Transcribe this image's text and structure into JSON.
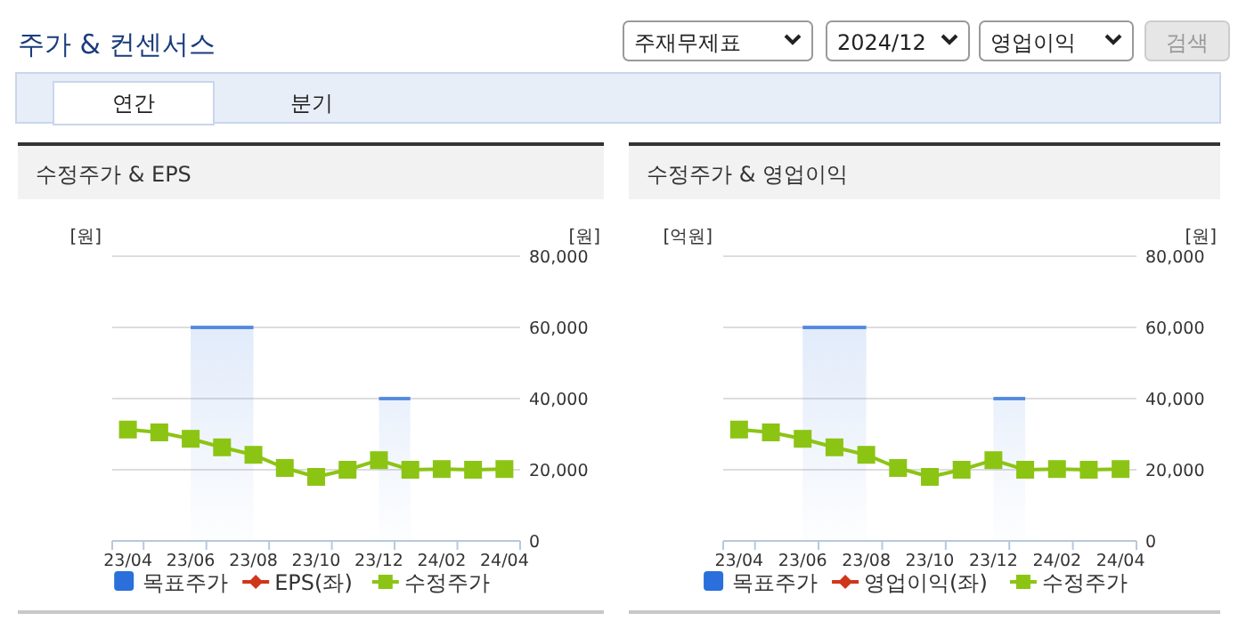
{
  "chart_data": [
    {
      "type": "other",
      "title": "주가 & 컨센서스",
      "annotations": [
        "주재무제표",
        "2024/12",
        "영업이익",
        "검색",
        "연간",
        "분기"
      ]
    },
    {
      "type": "line",
      "title": "수정주가 & EPS",
      "ylabel": "[원]",
      "y2label": "[원]",
      "categories": [
        "23/04",
        null,
        "23/06",
        null,
        "23/08",
        null,
        "23/10",
        null,
        "23/12",
        null,
        "24/02",
        null,
        "24/04"
      ],
      "y2lim": [
        0,
        80000
      ],
      "y2ticks": [
        {
          "value": 0,
          "label": "0"
        },
        {
          "value": 20000,
          "label": "20,000"
        },
        {
          "value": 40000,
          "label": "40,000"
        },
        {
          "value": 60000,
          "label": "60,000"
        },
        {
          "value": 80000,
          "label": "80,000"
        }
      ],
      "grid": true,
      "legend": "bottom",
      "series": [
        {
          "name": "목표주가",
          "type": "area",
          "axis": "y2",
          "color": "#2a6fdb",
          "values": [
            null,
            null,
            60000,
            60000,
            60000,
            null,
            null,
            null,
            40000,
            40000,
            null,
            null,
            null
          ]
        },
        {
          "name": "EPS(좌)",
          "type": "line",
          "color": "#d0361a",
          "marker": "diamond",
          "values": [
            null,
            null,
            null,
            null,
            null,
            null,
            null,
            null,
            null,
            null,
            null,
            null,
            null
          ]
        },
        {
          "name": "수정주가",
          "type": "line",
          "axis": "y2",
          "color": "#8cc414",
          "marker": "square",
          "values": [
            31300,
            30500,
            28700,
            26300,
            24200,
            20500,
            18000,
            20000,
            22700,
            20000,
            20200,
            20000,
            20200
          ]
        }
      ]
    },
    {
      "type": "line",
      "title": "수정주가 & 영업이익",
      "ylabel": "[억원]",
      "y2label": "[원]",
      "categories": [
        "23/04",
        null,
        "23/06",
        null,
        "23/08",
        null,
        "23/10",
        null,
        "23/12",
        null,
        "24/02",
        null,
        "24/04"
      ],
      "y2lim": [
        0,
        80000
      ],
      "y2ticks": [
        {
          "value": 0,
          "label": "0"
        },
        {
          "value": 20000,
          "label": "20,000"
        },
        {
          "value": 40000,
          "label": "40,000"
        },
        {
          "value": 60000,
          "label": "60,000"
        },
        {
          "value": 80000,
          "label": "80,000"
        }
      ],
      "grid": true,
      "legend": "bottom",
      "series": [
        {
          "name": "목표주가",
          "type": "area",
          "axis": "y2",
          "color": "#2a6fdb",
          "values": [
            null,
            null,
            60000,
            60000,
            60000,
            null,
            null,
            null,
            40000,
            40000,
            null,
            null,
            null
          ]
        },
        {
          "name": "영업이익(좌)",
          "type": "line",
          "color": "#d0361a",
          "marker": "diamond",
          "values": [
            null,
            null,
            null,
            null,
            null,
            null,
            null,
            null,
            null,
            null,
            null,
            null,
            null
          ]
        },
        {
          "name": "수정주가",
          "type": "line",
          "axis": "y2",
          "color": "#8cc414",
          "marker": "square",
          "values": [
            31300,
            30500,
            28700,
            26300,
            24200,
            20500,
            18000,
            20000,
            22700,
            20000,
            20200,
            20000,
            20200
          ]
        }
      ]
    }
  ]
}
